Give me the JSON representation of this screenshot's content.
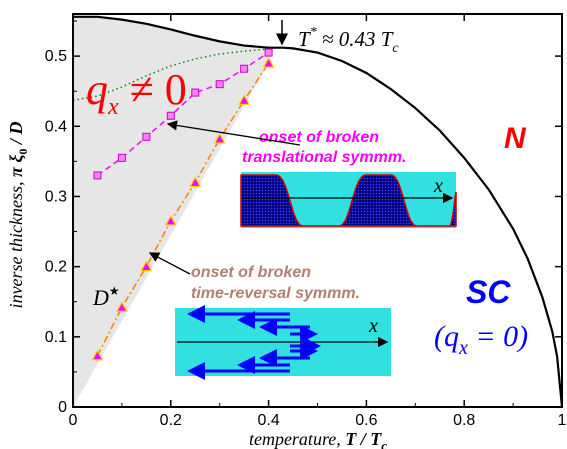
{
  "chart_data": {
    "type": "line",
    "xlim": [
      0,
      1
    ],
    "ylim": [
      0,
      0.56
    ],
    "xticks": [
      "0",
      "0.2",
      "0.4",
      "0.6",
      "0.8",
      "1"
    ],
    "yticks": [
      "0",
      "0.1",
      "0.2",
      "0.3",
      "0.4",
      "0.5"
    ],
    "grid": false,
    "xlabel": {
      "italic": "temperature,",
      "bold": "T / T",
      "sub": "c"
    },
    "ylabel": {
      "italic": "inverse thickness,",
      "bold": "π ξ",
      "sub": "0",
      "tail": " / D"
    },
    "series": [
      {
        "role": "N-SC phase boundary",
        "color": "#000000",
        "x": [
          0.0,
          0.05,
          0.1,
          0.15,
          0.2,
          0.25,
          0.3,
          0.35,
          0.4,
          0.43,
          0.45,
          0.5,
          0.55,
          0.6,
          0.65,
          0.7,
          0.75,
          0.8,
          0.85,
          0.9,
          0.93,
          0.96,
          0.98,
          0.99,
          1.0
        ],
        "y": [
          0.556,
          0.556,
          0.552,
          0.546,
          0.538,
          0.529,
          0.521,
          0.515,
          0.512,
          0.512,
          0.511,
          0.505,
          0.493,
          0.476,
          0.453,
          0.426,
          0.394,
          0.355,
          0.31,
          0.254,
          0.211,
          0.156,
          0.108,
          0.072,
          0.0
        ]
      },
      {
        "role": "onset of broken translational symmetry",
        "color": "#ff00ff",
        "marker": "square",
        "marker_fill": "#ff80ff",
        "x": [
          0.05,
          0.1,
          0.15,
          0.2,
          0.25,
          0.3,
          0.35,
          0.4
        ],
        "y": [
          0.33,
          0.355,
          0.385,
          0.415,
          0.448,
          0.46,
          0.482,
          0.505
        ]
      },
      {
        "role": "onset of broken time-reversal symmetry",
        "color": "#ff8000",
        "marker": "triangle",
        "marker_fill": "#ff00ff",
        "x": [
          0.05,
          0.1,
          0.15,
          0.2,
          0.25,
          0.3,
          0.35,
          0.4
        ],
        "y": [
          0.073,
          0.142,
          0.2,
          0.265,
          0.32,
          0.382,
          0.437,
          0.49
        ]
      },
      {
        "role": "dotted curve",
        "color": "#008000",
        "x": [
          0.0,
          0.05,
          0.1,
          0.15,
          0.2,
          0.25,
          0.3,
          0.35,
          0.4
        ],
        "y": [
          0.437,
          0.443,
          0.456,
          0.472,
          0.486,
          0.496,
          0.503,
          0.507,
          0.51
        ]
      }
    ],
    "annotations": {
      "tstar": {
        "label": "T",
        "sup": "*",
        "rest": " ≈ 0.43 T",
        "sub": "c"
      },
      "qx_phase": {
        "q": "q",
        "sub": "x",
        "rest": " ≠ 0"
      },
      "normal": "N",
      "sc": "SC",
      "sc_q": {
        "open": "(q",
        "sub": "x",
        "rest": " = 0)"
      },
      "dstar": {
        "label": "D",
        "sup": "★"
      },
      "translational": [
        "onset of broken",
        "translational symmm."
      ],
      "time_reversal": [
        "onset of broken",
        "time-reversal symmm."
      ],
      "x_axis_symbol": "x"
    },
    "colors": {
      "qx_phase": "#ff0000",
      "normal": "#ff0000",
      "sc": "#0000ff",
      "translational": "#ff00ff",
      "time_reversal": "#b08070",
      "inset_bg": "#33e0e0",
      "inset_wave": "#000080",
      "arrows": "#0000ff"
    }
  }
}
